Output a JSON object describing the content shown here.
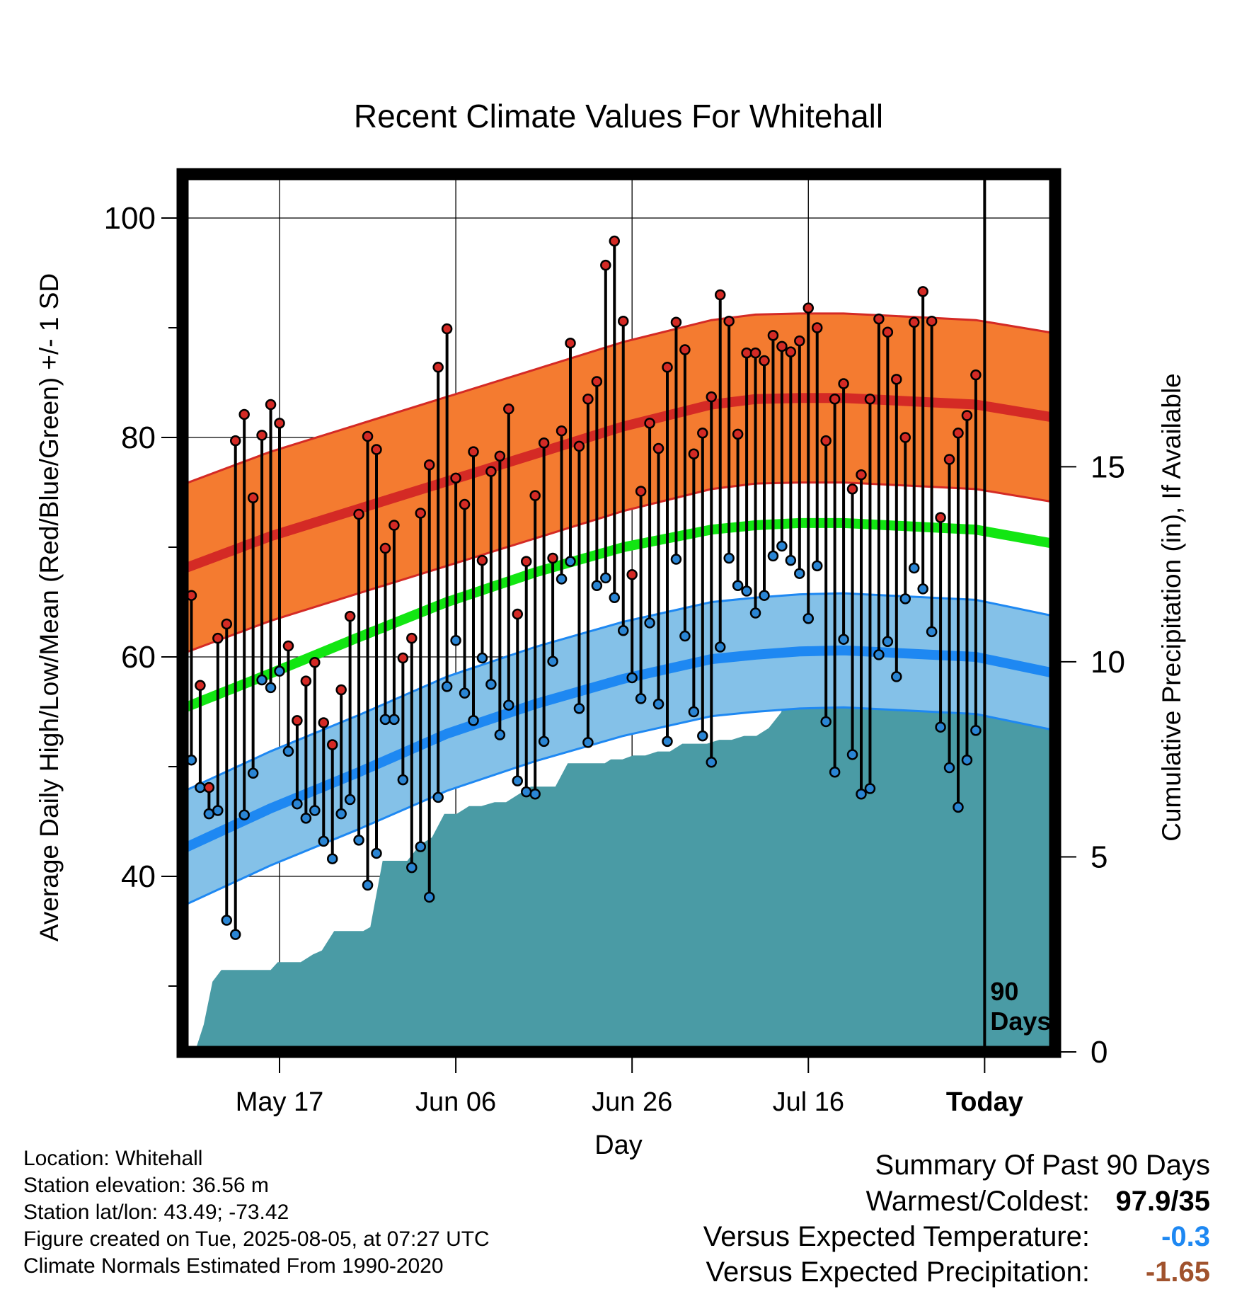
{
  "chart_data": {
    "type": "line",
    "title": "Recent Climate Values For Whitehall",
    "xlabel": "Day",
    "ylabel": "Average Daily High/Low/Mean (Red/Blue/Green) +/- 1 SD",
    "y2label": "Cumulative Precipitation (in), If Available",
    "ylim": [
      24,
      104
    ],
    "y2lim": [
      0,
      22.5
    ],
    "xlim": [
      -5,
      94
    ],
    "yticks": [
      "100",
      "80",
      "60",
      "40"
    ],
    "y2ticks": [
      "15",
      "10",
      "5",
      "0"
    ],
    "xtick_labels": [
      "May 17",
      "Jun 06",
      "Jun 26",
      "Jul 16",
      "Today"
    ],
    "xtick_days": [
      6,
      26,
      46,
      66,
      86
    ],
    "today_day": 86,
    "today_label": "90 Days",
    "grid": true,
    "colors": {
      "high_band": "#f47b30",
      "high_line": "#d42a25",
      "low_band": "#84c1e8",
      "low_line": "#1e88f2",
      "mean_line": "#12e612",
      "precip": "#4a9ba5",
      "high_dot": "#d42a25",
      "low_dot": "#2a85d4",
      "axes": "#000000"
    },
    "normals": {
      "x": [
        -5,
        5,
        15,
        25,
        35,
        45,
        55,
        60,
        65,
        70,
        75,
        85,
        94
      ],
      "high_mean": [
        68,
        71,
        73.5,
        76,
        78.5,
        81,
        83,
        83.5,
        83.6,
        83.6,
        83.4,
        83,
        81.8
      ],
      "high_sd": 7.7,
      "low_mean": [
        42.5,
        46.2,
        49.5,
        53,
        55.7,
        58,
        59.8,
        60.2,
        60.5,
        60.6,
        60.4,
        60,
        58.5
      ],
      "low_sd": 5.2,
      "mean_mean": [
        55.3,
        58.5,
        61.8,
        65,
        67.7,
        70,
        71.6,
        72,
        72.2,
        72.2,
        72,
        71.6,
        70.3
      ]
    },
    "highs": [
      65.6,
      57.4,
      48.1,
      61.7,
      63,
      79.7,
      82.1,
      74.5,
      80.2,
      83,
      81.3,
      61,
      54.2,
      57.8,
      59.5,
      54,
      52,
      57,
      63.7,
      73,
      80.1,
      78.9,
      69.9,
      72,
      59.9,
      61.7,
      73.1,
      77.5,
      86.4,
      89.9,
      76.3,
      73.9,
      78.7,
      68.8,
      76.9,
      78.3,
      82.6,
      63.9,
      68.7,
      74.7,
      79.5,
      69,
      80.6,
      88.6,
      79.2,
      83.5,
      85.1,
      95.7,
      97.9,
      90.6,
      67.5,
      75.1,
      81.3,
      79,
      86.4,
      90.5,
      88,
      78.5,
      80.4,
      83.7,
      93,
      90.6,
      80.3,
      87.7,
      87.7,
      87,
      89.3,
      88.3,
      87.8,
      88.8,
      91.8,
      90,
      79.7,
      83.5,
      84.9,
      75.3,
      76.6,
      83.5,
      90.8,
      89.6,
      85.3,
      80,
      90.5,
      93.3,
      90.6,
      72.7,
      78,
      80.4,
      82,
      85.7
    ],
    "lows": [
      50.6,
      48.1,
      45.7,
      46,
      36,
      34.7,
      45.6,
      49.4,
      57.9,
      57.2,
      58.7,
      51.4,
      46.6,
      45.3,
      46,
      43.2,
      41.6,
      45.7,
      47,
      43.3,
      39.2,
      42.1,
      54.3,
      54.3,
      48.8,
      40.8,
      42.7,
      38.1,
      47.2,
      57.3,
      61.5,
      56.7,
      54.2,
      59.9,
      57.5,
      52.9,
      55.6,
      48.7,
      47.7,
      47.5,
      52.3,
      59.6,
      67.1,
      68.7,
      55.3,
      52.2,
      66.5,
      67.2,
      65.4,
      62.4,
      58.1,
      56.2,
      63.1,
      55.7,
      52.3,
      68.9,
      61.9,
      55,
      52.8,
      50.4,
      60.9,
      69,
      66.5,
      66,
      64,
      65.6,
      69.2,
      70.1,
      68.8,
      67.6,
      63.5,
      68.3,
      54.1,
      49.5,
      61.6,
      51.1,
      47.5,
      48,
      60.2,
      61.4,
      58.2,
      65.3,
      68.1,
      66.2,
      62.3,
      53.6,
      49.9,
      46.3,
      50.6,
      53.3
    ],
    "precip": {
      "x": [
        -3.6,
        -2.6,
        -1.6,
        -0.6,
        0.6,
        5,
        5.8,
        7,
        8.4,
        9.8,
        10.8,
        12.2,
        13.6,
        15,
        15.5,
        16.3,
        17.7,
        19.1,
        20.5,
        21.9,
        23.3,
        24.7,
        26.1,
        27.5,
        28.9,
        30.4,
        31.7,
        33.1,
        34.5,
        35.9,
        37.3,
        38.7,
        40.1,
        41.5,
        42.9,
        43.6,
        44.9,
        46.1,
        47.5,
        48.9,
        50.3,
        51.7,
        53.1,
        54.5,
        55.9,
        57.3,
        58.7,
        60.1,
        61.5,
        62.9,
        63.9,
        64.9,
        65.9,
        67.3,
        68.7,
        70.1,
        71.5,
        72.9,
        74.3,
        75.7,
        77.1,
        77.7,
        79.1,
        80.5,
        81.9,
        83.3,
        84.7,
        86.1,
        94
      ],
      "y": [
        0,
        0.7,
        1.8,
        2.1,
        2.1,
        2.1,
        2.3,
        2.3,
        2.3,
        2.5,
        2.6,
        3.1,
        3.1,
        3.1,
        3.1,
        3.2,
        4.9,
        4.9,
        4.9,
        5.3,
        5.5,
        6.1,
        6.1,
        6.3,
        6.3,
        6.4,
        6.4,
        6.6,
        6.8,
        6.8,
        6.8,
        7.4,
        7.4,
        7.4,
        7.4,
        7.5,
        7.5,
        7.6,
        7.6,
        7.7,
        7.7,
        7.9,
        7.9,
        7.9,
        8,
        8,
        8.1,
        8.1,
        8.3,
        8.7,
        9.3,
        9.7,
        9.7,
        9.7,
        9.8,
        9.9,
        9.9,
        10,
        10.2,
        10.2,
        10.3,
        10.3,
        10.3,
        10.3,
        10.3,
        10.3,
        10.3,
        10.3,
        10.3
      ]
    }
  },
  "info": {
    "location": "Location: Whitehall",
    "elevation": "Station elevation: 36.56 m",
    "latlon": "Station lat/lon: 43.49; -73.42",
    "created": "Figure created on Tue, 2025-08-05, at 07:27 UTC",
    "normals_note": "Climate Normals Estimated From 1990-2020"
  },
  "summary": {
    "title": "Summary Of Past 90 Days",
    "warmest_coldest_label": "Warmest/Coldest:",
    "warmest_coldest_value": "97.9/35",
    "temp_label": "Versus Expected Temperature:",
    "temp_value": "-0.3",
    "temp_color": "#1e88f2",
    "precip_label": "Versus Expected Precipitation:",
    "precip_value": "-1.65",
    "precip_color": "#a0522d"
  }
}
